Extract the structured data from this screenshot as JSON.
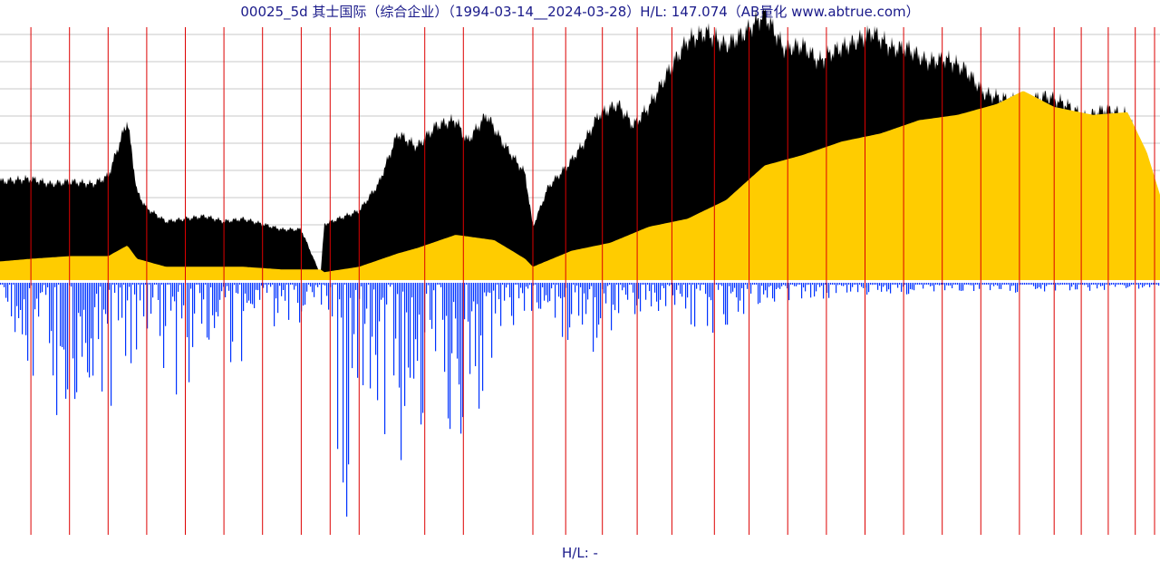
{
  "title": "00025_5d 其士国际（综合企业）（1994-03-14__2024-03-28）H/L: 147.074（AB量化  www.abtrue.com）",
  "footer": "H/L: -",
  "colors": {
    "price_fill": "#000000",
    "base_fill": "#ffcc00",
    "volume": "#0033ff",
    "year_line": "#dd0000",
    "grid": "#c8c8c8",
    "text": "#1a1a8a"
  },
  "chart_data": {
    "type": "area",
    "title": "00025_5d 其士国际（综合企业）（1994-03-14__2024-03-28）H/L: 147.074（AB量化  www.abtrue.com）",
    "date_range": [
      "1994-03-14",
      "2024-03-28"
    ],
    "hl_ratio": 147.074,
    "grid": true,
    "note_values": "relative levels estimated from the picture; the chart prints no price axis",
    "series": [
      {
        "role": "high",
        "x": [
          1994.2,
          1995.0,
          1995.5,
          1996.0,
          1996.6,
          1997.0,
          1997.5,
          1997.75,
          1998.0,
          1998.5,
          1999.0,
          1999.5,
          2000.0,
          2000.5,
          2001.0,
          2001.5,
          2002.0,
          2002.5,
          2002.6,
          2003.5,
          2003.6,
          2004.0,
          2004.5,
          2005.0,
          2005.5,
          2006.0,
          2006.3,
          2006.8,
          2007.2,
          2007.8,
          2008.0,
          2008.4,
          2008.9,
          2009.3,
          2009.7,
          2010.2,
          2010.6,
          2011.0,
          2011.5,
          2012.0,
          2012.5,
          2013.0,
          2013.5,
          2014.0,
          2014.5,
          2015.0,
          2015.4,
          2015.8,
          2016.3,
          2016.8,
          2017.3,
          2017.7,
          2018.2,
          2018.7,
          2019.2,
          2019.7,
          2020.2,
          2020.7,
          2021.3,
          2021.8,
          2022.3,
          2022.8,
          2023.4,
          2023.9,
          2024.24
        ],
        "values": [
          0.37,
          0.38,
          0.36,
          0.37,
          0.36,
          0.39,
          0.6,
          0.33,
          0.27,
          0.22,
          0.23,
          0.24,
          0.22,
          0.23,
          0.21,
          0.19,
          0.19,
          0.02,
          0.21,
          0.26,
          0.28,
          0.36,
          0.55,
          0.5,
          0.58,
          0.6,
          0.52,
          0.62,
          0.52,
          0.4,
          0.2,
          0.35,
          0.43,
          0.51,
          0.62,
          0.66,
          0.58,
          0.65,
          0.78,
          0.9,
          0.93,
          0.88,
          0.93,
          1.0,
          0.87,
          0.88,
          0.82,
          0.86,
          0.89,
          0.93,
          0.87,
          0.87,
          0.82,
          0.83,
          0.79,
          0.7,
          0.68,
          0.67,
          0.69,
          0.66,
          0.61,
          0.64,
          0.62,
          0.44,
          0.3
        ]
      },
      {
        "role": "base",
        "x": [
          1994.2,
          1995.0,
          1996.0,
          1997.0,
          1997.5,
          1997.75,
          1998.5,
          1999.5,
          2000.5,
          2001.5,
          2002.5,
          2002.6,
          2003.5,
          2004.5,
          2005.0,
          2006.0,
          2007.0,
          2007.8,
          2008.0,
          2009.0,
          2010.0,
          2011.0,
          2012.0,
          2013.0,
          2014.0,
          2015.0,
          2016.0,
          2017.0,
          2018.0,
          2019.0,
          2020.0,
          2020.7,
          2021.5,
          2022.5,
          2023.4,
          2023.9,
          2024.24
        ],
        "values": [
          0.07,
          0.08,
          0.09,
          0.09,
          0.13,
          0.08,
          0.05,
          0.05,
          0.05,
          0.04,
          0.04,
          0.03,
          0.05,
          0.1,
          0.12,
          0.17,
          0.15,
          0.08,
          0.05,
          0.11,
          0.14,
          0.2,
          0.23,
          0.3,
          0.43,
          0.47,
          0.52,
          0.55,
          0.6,
          0.62,
          0.66,
          0.71,
          0.65,
          0.62,
          0.63,
          0.48,
          0.32
        ]
      }
    ],
    "volume": {
      "color": "#0033ff",
      "x": [
        1994.2,
        1995.0,
        1995.6,
        1996.4,
        1997.2,
        1998.0,
        1998.8,
        1999.5,
        2000.5,
        2001.5,
        2002.5,
        2003.1,
        2003.6,
        2004.6,
        2005.5,
        2006.4,
        2007.2,
        2008.0,
        2008.6,
        2009.5,
        2010.5,
        2011.5,
        2012.5,
        2013.5,
        2014.5,
        2015.5,
        2016.5,
        2017.5,
        2018.5,
        2019.5,
        2020.5,
        2021.5,
        2022.5,
        2023.5,
        2024.24
      ],
      "values": [
        0.12,
        0.32,
        0.8,
        0.38,
        0.5,
        0.2,
        0.45,
        0.3,
        0.3,
        0.18,
        0.2,
        1.0,
        0.5,
        0.7,
        0.55,
        0.6,
        0.18,
        0.12,
        0.2,
        0.3,
        0.15,
        0.1,
        0.2,
        0.12,
        0.08,
        0.06,
        0.05,
        0.05,
        0.04,
        0.04,
        0.04,
        0.03,
        0.03,
        0.03,
        0.03
      ]
    },
    "year_lines": [
      1995.0,
      1996.0,
      1997.0,
      1998.0,
      1999.0,
      2000.0,
      2001.0,
      2002.0,
      2002.75,
      2003.5,
      2005.2,
      2006.2,
      2008.0,
      2008.85,
      2009.8,
      2010.7,
      2011.6,
      2012.7,
      2013.6,
      2014.6,
      2015.6,
      2016.6,
      2017.6,
      2018.6,
      2019.6,
      2020.6,
      2021.5,
      2022.2,
      2022.9,
      2023.6,
      2024.1
    ]
  }
}
